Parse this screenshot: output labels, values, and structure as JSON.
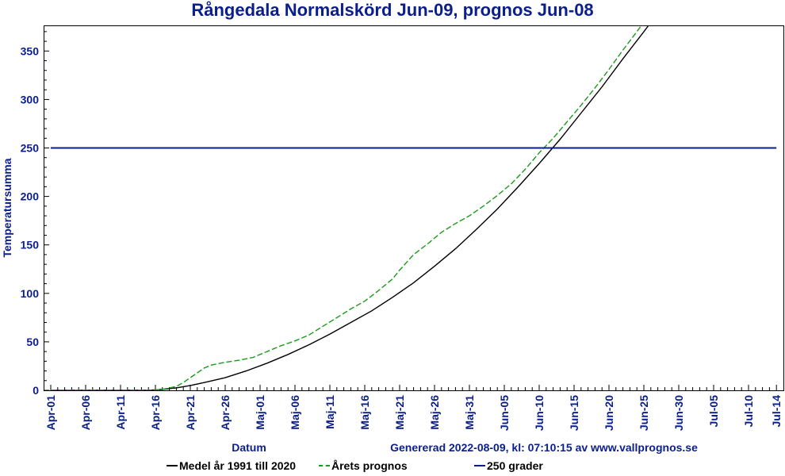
{
  "chart_data": {
    "type": "line",
    "title": "Rångedala Normalskörd Jun-09, prognos Jun-08",
    "xlabel": "Datum",
    "ylabel": "Temperatursumma",
    "footer": "Genererad 2022-08-09, kl: 07:10:15 av www.vallprognos.se",
    "x_ticks": [
      "Apr-01",
      "Apr-06",
      "Apr-11",
      "Apr-16",
      "Apr-21",
      "Apr-26",
      "Maj-01",
      "Maj-06",
      "Maj-11",
      "Maj-16",
      "Maj-21",
      "Maj-26",
      "Maj-31",
      "Jun-05",
      "Jun-10",
      "Jun-15",
      "Jun-20",
      "Jun-25",
      "Jun-30",
      "Jul-05",
      "Jul-10",
      "Jul-14"
    ],
    "y_ticks": [
      0,
      50,
      100,
      150,
      200,
      250,
      300,
      350
    ],
    "ylim": [
      0,
      380
    ],
    "x_range_days": [
      0,
      104
    ],
    "series": [
      {
        "name": "Medel år 1991 till 2020",
        "color": "#000000",
        "style": "solid",
        "x": [
          0,
          5,
          10,
          14,
          16,
          18,
          20,
          22,
          25,
          28,
          31,
          34,
          37,
          40,
          43,
          46,
          49,
          52,
          55,
          58,
          61,
          64,
          67,
          70,
          73,
          76,
          79,
          82,
          85,
          87
        ],
        "y": [
          0,
          0,
          0,
          0,
          1,
          2.5,
          5,
          8,
          13,
          20,
          28,
          37,
          47,
          58,
          70,
          82,
          96,
          111,
          128,
          146,
          166,
          187,
          210,
          234,
          259,
          286,
          313,
          342,
          370,
          389
        ]
      },
      {
        "name": "Årets prognos",
        "color": "#1a9a1a",
        "style": "dashed",
        "x": [
          0,
          5,
          10,
          14,
          16,
          18,
          19,
          20,
          21,
          22,
          23,
          25,
          27,
          29,
          31,
          33,
          35,
          37,
          39,
          41,
          43,
          45,
          47,
          49,
          50,
          52,
          54,
          56,
          58,
          60,
          62,
          64,
          66,
          68,
          70,
          72,
          74,
          76,
          78,
          80,
          82,
          84,
          86
        ],
        "y": [
          0,
          0,
          0,
          0,
          1,
          4,
          8,
          13,
          18,
          23,
          26,
          29,
          31,
          34,
          40,
          46,
          51,
          57,
          66,
          75,
          84,
          92,
          103,
          115,
          124,
          140,
          151,
          163,
          172,
          180,
          190,
          201,
          213,
          228,
          245,
          260,
          277,
          294,
          312,
          331,
          351,
          370,
          390
        ]
      },
      {
        "name": "250 grader",
        "color": "#0a1e8c",
        "style": "solid",
        "x": [
          0,
          104
        ],
        "y": [
          250,
          250
        ]
      }
    ],
    "legend_position": "bottom",
    "grid": false
  }
}
